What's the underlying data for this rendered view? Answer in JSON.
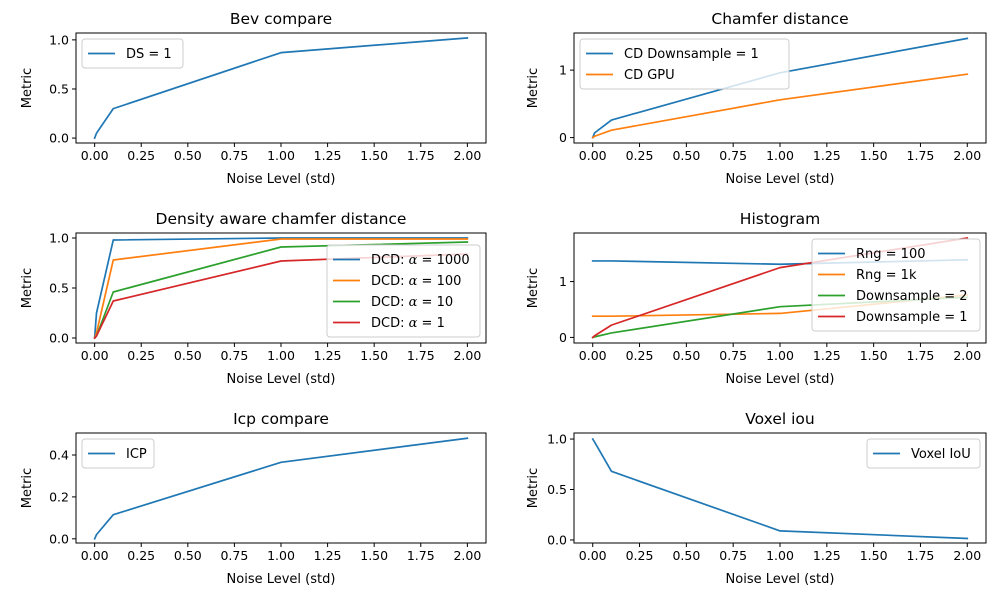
{
  "figure": {
    "background": "#ffffff"
  },
  "colors": [
    "#1f77b4",
    "#ff7f0e",
    "#2ca02c",
    "#d62728"
  ],
  "chart_data": [
    {
      "id": "bev",
      "type": "line",
      "title": "Bev compare",
      "xlabel": "Noise Level (std)",
      "ylabel": "Metric",
      "xlim": [
        -0.1,
        2.1
      ],
      "ylim": [
        -0.05,
        1.07
      ],
      "xticks": [
        0.0,
        0.25,
        0.5,
        0.75,
        1.0,
        1.25,
        1.5,
        1.75,
        2.0
      ],
      "xtick_labels": [
        "0.00",
        "0.25",
        "0.50",
        "0.75",
        "1.00",
        "1.25",
        "1.50",
        "1.75",
        "2.00"
      ],
      "yticks": [
        0.0,
        0.5,
        1.0
      ],
      "ytick_labels": [
        "0.0",
        "0.5",
        "1.0"
      ],
      "legend": "top-left",
      "x": [
        0.0,
        0.01,
        0.1,
        1.0,
        2.0
      ],
      "series": [
        {
          "name": "DS = 1",
          "values": [
            0.0,
            0.05,
            0.3,
            0.87,
            1.02
          ]
        }
      ]
    },
    {
      "id": "chamfer",
      "type": "line",
      "title": "Chamfer distance",
      "xlabel": "Noise Level (std)",
      "ylabel": "Metric",
      "xlim": [
        -0.1,
        2.1
      ],
      "ylim": [
        -0.08,
        1.55
      ],
      "xticks": [
        0.0,
        0.25,
        0.5,
        0.75,
        1.0,
        1.25,
        1.5,
        1.75,
        2.0
      ],
      "xtick_labels": [
        "0.00",
        "0.25",
        "0.50",
        "0.75",
        "1.00",
        "1.25",
        "1.50",
        "1.75",
        "2.00"
      ],
      "yticks": [
        0,
        1
      ],
      "ytick_labels": [
        "0",
        "1"
      ],
      "legend": "top-left",
      "x": [
        0.0,
        0.01,
        0.1,
        1.0,
        2.0
      ],
      "series": [
        {
          "name": "CD Downsample = 1",
          "values": [
            0.0,
            0.07,
            0.26,
            0.96,
            1.47
          ]
        },
        {
          "name": "CD GPU",
          "values": [
            0.0,
            0.02,
            0.11,
            0.56,
            0.94
          ]
        }
      ]
    },
    {
      "id": "dcd",
      "type": "line",
      "title": "Density aware chamfer distance",
      "xlabel": "Noise Level (std)",
      "ylabel": "Metric",
      "xlim": [
        -0.1,
        2.1
      ],
      "ylim": [
        -0.05,
        1.05
      ],
      "xticks": [
        0.0,
        0.25,
        0.5,
        0.75,
        1.0,
        1.25,
        1.5,
        1.75,
        2.0
      ],
      "xtick_labels": [
        "0.00",
        "0.25",
        "0.50",
        "0.75",
        "1.00",
        "1.25",
        "1.50",
        "1.75",
        "2.00"
      ],
      "yticks": [
        0.0,
        0.5,
        1.0
      ],
      "ytick_labels": [
        "0.0",
        "0.5",
        "1.0"
      ],
      "legend": "right",
      "x": [
        0.0,
        0.01,
        0.1,
        1.0,
        2.0
      ],
      "series": [
        {
          "name": "DCD: α = 1000",
          "math": true,
          "prefix": "DCD: ",
          "value": "1000",
          "values": [
            0.0,
            0.25,
            0.98,
            1.0,
            1.0
          ]
        },
        {
          "name": "DCD: α = 100",
          "math": true,
          "prefix": "DCD: ",
          "value": "100",
          "values": [
            0.0,
            0.05,
            0.78,
            0.99,
            0.99
          ]
        },
        {
          "name": "DCD: α = 10",
          "math": true,
          "prefix": "DCD: ",
          "value": "10",
          "values": [
            0.0,
            0.02,
            0.46,
            0.91,
            0.96
          ]
        },
        {
          "name": "DCD: α = 1",
          "math": true,
          "prefix": "DCD: ",
          "value": "1",
          "values": [
            0.0,
            0.02,
            0.37,
            0.77,
            0.84
          ]
        }
      ]
    },
    {
      "id": "histogram",
      "type": "line",
      "title": "Histogram",
      "xlabel": "Noise Level (std)",
      "ylabel": "Metric",
      "xlim": [
        -0.1,
        2.1
      ],
      "ylim": [
        -0.1,
        1.87
      ],
      "xticks": [
        0.0,
        0.25,
        0.5,
        0.75,
        1.0,
        1.25,
        1.5,
        1.75,
        2.0
      ],
      "xtick_labels": [
        "0.00",
        "0.25",
        "0.50",
        "0.75",
        "1.00",
        "1.25",
        "1.50",
        "1.75",
        "2.00"
      ],
      "yticks": [
        0,
        1
      ],
      "ytick_labels": [
        "0",
        "1"
      ],
      "legend": "top-right",
      "x": [
        0.0,
        0.01,
        0.1,
        1.0,
        2.0
      ],
      "series": [
        {
          "name": "Rng = 100",
          "values": [
            1.37,
            1.37,
            1.37,
            1.31,
            1.39
          ]
        },
        {
          "name": "Rng = 1k",
          "values": [
            0.38,
            0.38,
            0.38,
            0.43,
            0.76
          ]
        },
        {
          "name": "Downsample = 2",
          "values": [
            0.0,
            0.01,
            0.08,
            0.55,
            0.72
          ]
        },
        {
          "name": "Downsample = 1",
          "values": [
            0.0,
            0.03,
            0.22,
            1.25,
            1.78
          ]
        }
      ]
    },
    {
      "id": "icp",
      "type": "line",
      "title": "Icp compare",
      "xlabel": "Noise Level (std)",
      "ylabel": "Metric",
      "xlim": [
        -0.1,
        2.1
      ],
      "ylim": [
        -0.02,
        0.505
      ],
      "xticks": [
        0.0,
        0.25,
        0.5,
        0.75,
        1.0,
        1.25,
        1.5,
        1.75,
        2.0
      ],
      "xtick_labels": [
        "0.00",
        "0.25",
        "0.50",
        "0.75",
        "1.00",
        "1.25",
        "1.50",
        "1.75",
        "2.00"
      ],
      "yticks": [
        0.0,
        0.2,
        0.4
      ],
      "ytick_labels": [
        "0.0",
        "0.2",
        "0.4"
      ],
      "legend": "top-left",
      "x": [
        0.0,
        0.01,
        0.1,
        1.0,
        2.0
      ],
      "series": [
        {
          "name": "ICP",
          "values": [
            0.0,
            0.02,
            0.115,
            0.365,
            0.48
          ]
        }
      ]
    },
    {
      "id": "voxel",
      "type": "line",
      "title": "Voxel iou",
      "xlabel": "Noise Level (std)",
      "ylabel": "Metric",
      "xlim": [
        -0.1,
        2.1
      ],
      "ylim": [
        -0.03,
        1.06
      ],
      "xticks": [
        0.0,
        0.25,
        0.5,
        0.75,
        1.0,
        1.25,
        1.5,
        1.75,
        2.0
      ],
      "xtick_labels": [
        "0.00",
        "0.25",
        "0.50",
        "0.75",
        "1.00",
        "1.25",
        "1.50",
        "1.75",
        "2.00"
      ],
      "yticks": [
        0.0,
        0.5,
        1.0
      ],
      "ytick_labels": [
        "0.0",
        "0.5",
        "1.0"
      ],
      "legend": "top-right",
      "x": [
        0.0,
        0.01,
        0.1,
        1.0,
        2.0
      ],
      "series": [
        {
          "name": "Voxel IoU",
          "values": [
            1.0,
            0.97,
            0.68,
            0.09,
            0.015
          ]
        }
      ]
    }
  ]
}
